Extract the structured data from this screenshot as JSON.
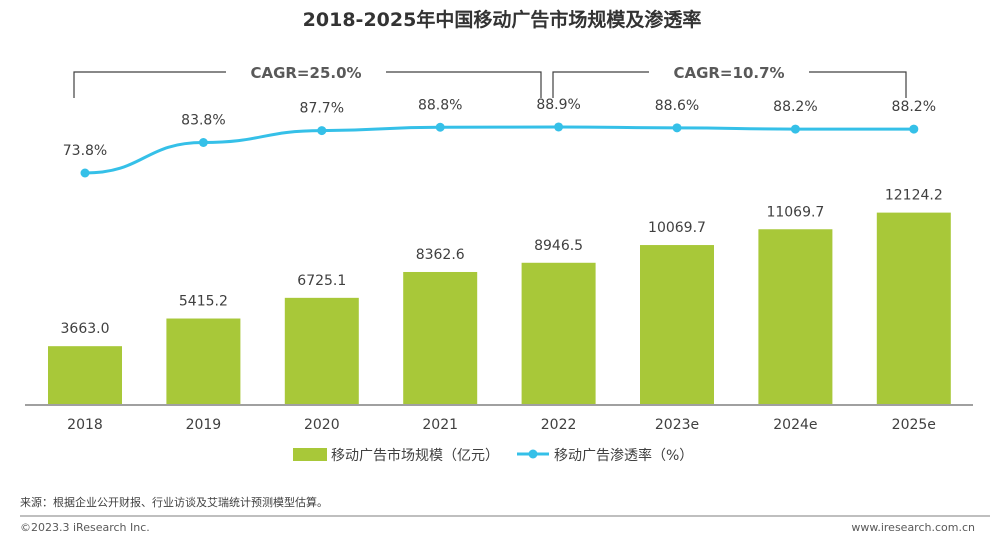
{
  "chart_data": {
    "type": "bar",
    "title": "2018-2025年中国移动广告市场规模及渗透率",
    "categories": [
      "2018",
      "2019",
      "2020",
      "2021",
      "2022",
      "2023e",
      "2024e",
      "2025e"
    ],
    "series": [
      {
        "name": "移动广告市场规模（亿元）",
        "type": "bar",
        "values": [
          3663.0,
          5415.2,
          6725.1,
          8362.6,
          8946.5,
          10069.7,
          11069.7,
          12124.2
        ],
        "labels": [
          "3663.0",
          "5415.2",
          "6725.1",
          "8362.6",
          "8946.5",
          "10069.7",
          "11069.7",
          "12124.2"
        ],
        "color": "#a8c839"
      },
      {
        "name": "移动广告渗透率（%）",
        "type": "line",
        "values": [
          73.8,
          83.8,
          87.7,
          88.8,
          88.9,
          88.6,
          88.2,
          88.2
        ],
        "labels": [
          "73.8%",
          "83.8%",
          "87.7%",
          "88.8%",
          "88.9%",
          "88.6%",
          "88.2%",
          "88.2%"
        ],
        "color": "#35c0e8"
      }
    ],
    "ylim": [
      0,
      14000
    ],
    "y2lim": [
      50,
      100
    ],
    "grid": false,
    "legend": "bottom-center",
    "annotations": [
      {
        "text": "CAGR=25.0%",
        "from": "2018",
        "to": "2022"
      },
      {
        "text": "CAGR=10.7%",
        "from": "2022",
        "to": "2025e"
      }
    ]
  },
  "footer": {
    "source": "来源：根据企业公开财报、行业访谈及艾瑞统计预测模型估算。",
    "copyright": "©2023.3 iResearch Inc.",
    "website": "www.iresearch.com.cn"
  }
}
